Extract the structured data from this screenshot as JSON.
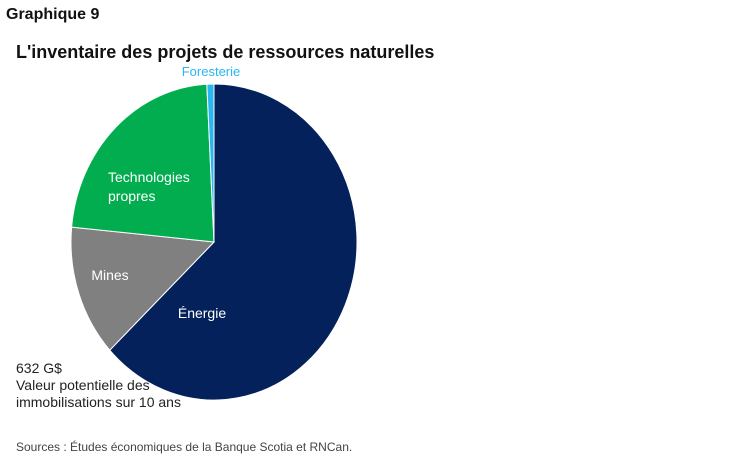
{
  "header": {
    "chart_number": "Graphique 9",
    "title": "L'inventaire des projets de ressources naturelles"
  },
  "chart_data": {
    "type": "pie",
    "title": "L'inventaire des projets de ressources naturelles",
    "slices": [
      {
        "label": "Énergie",
        "value": 63.0,
        "color": "#05215c",
        "label_color": "#ffffff"
      },
      {
        "label": "Mines",
        "value": 13.5,
        "color": "#808080",
        "label_color": "#ffffff"
      },
      {
        "label": "Technologies propres",
        "value": 22.7,
        "color": "#02ad4f",
        "label_color": "#ffffff"
      },
      {
        "label": "Foresterie",
        "value": 0.8,
        "color": "#28b7f0",
        "label_color": "#28b7f0"
      }
    ]
  },
  "note": {
    "line1": "632 G$",
    "line2": "Valeur potentielle des",
    "line3": "immobilisations sur 10 ans"
  },
  "footer": {
    "source": "Sources : Études économiques de la Banque Scotia et RNCan."
  }
}
